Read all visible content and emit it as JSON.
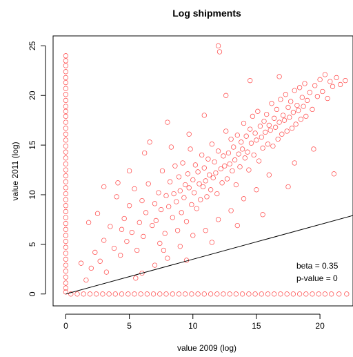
{
  "chart_data": {
    "type": "scatter",
    "title": "Log shipments",
    "xlabel": "value 2009 (log)",
    "ylabel": "value 2011 (log)",
    "xlim": [
      -1,
      22.6
    ],
    "ylim": [
      -1.2,
      26
    ],
    "x_ticks": [
      0,
      5,
      10,
      15,
      20
    ],
    "y_ticks": [
      0,
      5,
      10,
      15,
      20,
      25
    ],
    "marker": "open-circle",
    "point_color": "#ff0000",
    "line_color": "#000000",
    "fit_line": {
      "intercept": 0,
      "slope": 0.35
    },
    "annotations": [
      "beta = 0.35",
      "p-value = 0"
    ],
    "series": [
      {
        "points_main": [
          [
            1.2,
            3.1
          ],
          [
            1.6,
            1.4
          ],
          [
            2.0,
            2.6
          ],
          [
            2.3,
            4.2
          ],
          [
            2.7,
            3.3
          ],
          [
            3.0,
            5.4
          ],
          [
            3.2,
            2.2
          ],
          [
            3.5,
            6.8
          ],
          [
            3.8,
            4.6
          ],
          [
            4.0,
            9.8
          ],
          [
            4.1,
            11.2
          ],
          [
            4.3,
            3.9
          ],
          [
            4.6,
            7.6
          ],
          [
            4.8,
            5.3
          ],
          [
            5.0,
            8.9
          ],
          [
            5.2,
            6.2
          ],
          [
            5.4,
            10.6
          ],
          [
            5.6,
            4.4
          ],
          [
            5.8,
            7.2
          ],
          [
            6.0,
            9.4
          ],
          [
            6.1,
            5.8
          ],
          [
            6.3,
            8.2
          ],
          [
            6.5,
            11.1
          ],
          [
            6.6,
            15.3
          ],
          [
            6.8,
            6.9
          ],
          [
            7.0,
            9.1
          ],
          [
            7.1,
            7.4
          ],
          [
            7.3,
            10.2
          ],
          [
            7.5,
            8.5
          ],
          [
            7.6,
            12.4
          ],
          [
            7.8,
            6.1
          ],
          [
            7.9,
            9.9
          ],
          [
            8.0,
            17.3
          ],
          [
            8.1,
            8.8
          ],
          [
            8.2,
            11.3
          ],
          [
            8.4,
            7.7
          ],
          [
            8.5,
            10.1
          ],
          [
            8.6,
            12.9
          ],
          [
            8.7,
            9.3
          ],
          [
            8.8,
            6.4
          ],
          [
            8.9,
            11.8
          ],
          [
            9.0,
            10.4
          ],
          [
            9.1,
            8.2
          ],
          [
            9.2,
            13.2
          ],
          [
            9.3,
            9.7
          ],
          [
            9.4,
            11.0
          ],
          [
            9.5,
            7.3
          ],
          [
            9.6,
            12.1
          ],
          [
            9.7,
            10.7
          ],
          [
            9.8,
            14.6
          ],
          [
            9.9,
            9.0
          ],
          [
            10.0,
            11.5
          ],
          [
            10.1,
            10.2
          ],
          [
            10.2,
            13.0
          ],
          [
            10.3,
            8.6
          ],
          [
            10.4,
            12.3
          ],
          [
            10.5,
            11.1
          ],
          [
            10.6,
            9.5
          ],
          [
            10.7,
            14.0
          ],
          [
            10.8,
            10.8
          ],
          [
            10.9,
            12.7
          ],
          [
            11.0,
            11.4
          ],
          [
            11.1,
            9.8
          ],
          [
            11.2,
            13.6
          ],
          [
            11.3,
            12.0
          ],
          [
            11.4,
            10.5
          ],
          [
            11.5,
            15.1
          ],
          [
            11.6,
            11.7
          ],
          [
            11.7,
            13.3
          ],
          [
            11.8,
            12.2
          ],
          [
            11.9,
            10.1
          ],
          [
            12.0,
            14.4
          ],
          [
            12.0,
            25.0
          ],
          [
            12.1,
            24.4
          ],
          [
            12.2,
            12.6
          ],
          [
            12.3,
            11.2
          ],
          [
            12.4,
            13.9
          ],
          [
            12.5,
            12.9
          ],
          [
            12.6,
            16.4
          ],
          [
            12.7,
            11.6
          ],
          [
            12.8,
            14.2
          ],
          [
            12.9,
            13.1
          ],
          [
            13.0,
            15.6
          ],
          [
            13.1,
            12.4
          ],
          [
            13.2,
            14.8
          ],
          [
            13.3,
            13.5
          ],
          [
            13.4,
            11.0
          ],
          [
            13.5,
            16.0
          ],
          [
            13.6,
            14.1
          ],
          [
            13.7,
            12.8
          ],
          [
            13.8,
            15.3
          ],
          [
            13.9,
            14.6
          ],
          [
            14.0,
            17.2
          ],
          [
            14.1,
            13.7
          ],
          [
            14.2,
            15.9
          ],
          [
            14.3,
            14.3
          ],
          [
            14.4,
            12.5
          ],
          [
            14.5,
            16.6
          ],
          [
            14.6,
            15.2
          ],
          [
            14.7,
            17.9
          ],
          [
            14.8,
            14.0
          ],
          [
            14.9,
            16.2
          ],
          [
            15.0,
            15.5
          ],
          [
            15.1,
            18.4
          ],
          [
            15.2,
            13.4
          ],
          [
            15.3,
            16.9
          ],
          [
            15.4,
            15.8
          ],
          [
            15.5,
            14.7
          ],
          [
            15.6,
            17.4
          ],
          [
            15.7,
            16.3
          ],
          [
            15.8,
            18.1
          ],
          [
            15.9,
            15.1
          ],
          [
            16.0,
            17.0
          ],
          [
            16.1,
            16.5
          ],
          [
            16.2,
            19.2
          ],
          [
            16.3,
            14.9
          ],
          [
            16.4,
            17.7
          ],
          [
            16.5,
            16.8
          ],
          [
            16.6,
            18.6
          ],
          [
            16.7,
            15.6
          ],
          [
            16.8,
            17.3
          ],
          [
            16.9,
            19.6
          ],
          [
            17.0,
            16.1
          ],
          [
            17.1,
            18.0
          ],
          [
            17.2,
            17.5
          ],
          [
            17.3,
            20.1
          ],
          [
            17.4,
            16.4
          ],
          [
            17.5,
            18.8
          ],
          [
            17.6,
            17.8
          ],
          [
            17.7,
            19.4
          ],
          [
            17.8,
            16.7
          ],
          [
            17.9,
            18.3
          ],
          [
            18.0,
            20.5
          ],
          [
            18.1,
            17.1
          ],
          [
            18.2,
            19.0
          ],
          [
            18.3,
            18.5
          ],
          [
            18.4,
            20.8
          ],
          [
            18.5,
            17.6
          ],
          [
            18.6,
            19.8
          ],
          [
            18.7,
            18.9
          ],
          [
            18.8,
            21.2
          ],
          [
            18.9,
            17.9
          ],
          [
            19.0,
            19.5
          ],
          [
            19.2,
            20.3
          ],
          [
            19.4,
            18.6
          ],
          [
            19.6,
            21.0
          ],
          [
            19.8,
            19.9
          ],
          [
            20.0,
            21.6
          ],
          [
            20.2,
            20.4
          ],
          [
            20.4,
            22.1
          ],
          [
            20.6,
            19.7
          ],
          [
            20.8,
            21.4
          ],
          [
            21.0,
            20.9
          ],
          [
            21.3,
            21.8
          ],
          [
            21.6,
            21.1
          ],
          [
            22.0,
            21.5
          ],
          [
            21.1,
            12.1
          ],
          [
            19.5,
            14.6
          ],
          [
            18.0,
            13.2
          ],
          [
            16.0,
            12.0
          ],
          [
            15.0,
            10.5
          ],
          [
            14.0,
            9.6
          ],
          [
            13.0,
            8.4
          ],
          [
            12.0,
            7.5
          ],
          [
            11.0,
            6.4
          ],
          [
            10.0,
            5.9
          ],
          [
            9.0,
            4.8
          ],
          [
            8.0,
            3.6
          ],
          [
            7.0,
            2.9
          ],
          [
            6.0,
            2.1
          ],
          [
            5.5,
            1.6
          ],
          [
            9.5,
            3.4
          ],
          [
            11.5,
            5.2
          ],
          [
            13.5,
            6.9
          ],
          [
            15.5,
            8.0
          ],
          [
            17.5,
            10.8
          ],
          [
            3.0,
            10.8
          ],
          [
            2.5,
            8.1
          ],
          [
            5.0,
            12.4
          ],
          [
            6.2,
            14.2
          ],
          [
            4.4,
            6.5
          ],
          [
            7.4,
            5.1
          ],
          [
            8.3,
            14.8
          ],
          [
            9.7,
            16.1
          ],
          [
            10.9,
            18.0
          ],
          [
            12.6,
            20.0
          ],
          [
            14.5,
            21.5
          ],
          [
            16.8,
            21.9
          ],
          [
            7.7,
            4.4
          ],
          [
            1.8,
            7.2
          ]
        ],
        "points_y_axis_column": [
          [
            0,
            0.2
          ],
          [
            0,
            0.6
          ],
          [
            0,
            1.1
          ],
          [
            0,
            1.7
          ],
          [
            0,
            2.3
          ],
          [
            0,
            2.9
          ],
          [
            0,
            3.5
          ],
          [
            0,
            4.1
          ],
          [
            0,
            4.7
          ],
          [
            0,
            5.3
          ],
          [
            0,
            5.9
          ],
          [
            0,
            6.5
          ],
          [
            0,
            7.1
          ],
          [
            0,
            7.7
          ],
          [
            0,
            8.3
          ],
          [
            0,
            8.9
          ],
          [
            0,
            9.5
          ],
          [
            0,
            10.1
          ],
          [
            0,
            10.7
          ],
          [
            0,
            11.3
          ],
          [
            0,
            11.9
          ],
          [
            0,
            12.5
          ],
          [
            0,
            13.1
          ],
          [
            0,
            13.7
          ],
          [
            0,
            14.3
          ],
          [
            0,
            14.9
          ],
          [
            0,
            15.5
          ],
          [
            0,
            16.1
          ],
          [
            0,
            16.7
          ],
          [
            0,
            17.3
          ],
          [
            0,
            17.9
          ],
          [
            0,
            18.4
          ],
          [
            0,
            18.9
          ],
          [
            0,
            19.5
          ],
          [
            0,
            20.1
          ],
          [
            0,
            20.7
          ],
          [
            0,
            21.3
          ],
          [
            0,
            21.8
          ],
          [
            0,
            22.4
          ],
          [
            0,
            23.0
          ],
          [
            0,
            23.5
          ],
          [
            0,
            24.0
          ]
        ],
        "points_x_axis_row": [
          [
            0.4,
            0
          ],
          [
            0.9,
            0
          ],
          [
            1.4,
            0
          ],
          [
            1.9,
            0
          ],
          [
            2.4,
            0
          ],
          [
            2.9,
            0
          ],
          [
            3.4,
            0
          ],
          [
            3.9,
            0
          ],
          [
            4.4,
            0
          ],
          [
            4.9,
            0
          ],
          [
            5.4,
            0
          ],
          [
            5.9,
            0
          ],
          [
            6.4,
            0
          ],
          [
            6.9,
            0
          ],
          [
            7.4,
            0
          ],
          [
            7.9,
            0
          ],
          [
            8.4,
            0
          ],
          [
            8.9,
            0
          ],
          [
            9.4,
            0
          ],
          [
            9.9,
            0
          ],
          [
            10.4,
            0
          ],
          [
            10.9,
            0
          ],
          [
            11.4,
            0
          ],
          [
            11.9,
            0
          ],
          [
            12.4,
            0
          ],
          [
            12.9,
            0
          ],
          [
            13.4,
            0
          ],
          [
            13.9,
            0
          ],
          [
            14.4,
            0
          ],
          [
            14.9,
            0
          ],
          [
            15.4,
            0
          ],
          [
            15.9,
            0
          ],
          [
            16.4,
            0
          ],
          [
            16.9,
            0
          ],
          [
            17.4,
            0
          ],
          [
            17.9,
            0
          ],
          [
            18.4,
            0
          ],
          [
            18.9,
            0
          ],
          [
            19.4,
            0
          ],
          [
            19.9,
            0
          ],
          [
            20.4,
            0
          ],
          [
            20.9,
            0
          ],
          [
            21.5,
            0
          ],
          [
            22.1,
            0
          ]
        ]
      }
    ]
  }
}
